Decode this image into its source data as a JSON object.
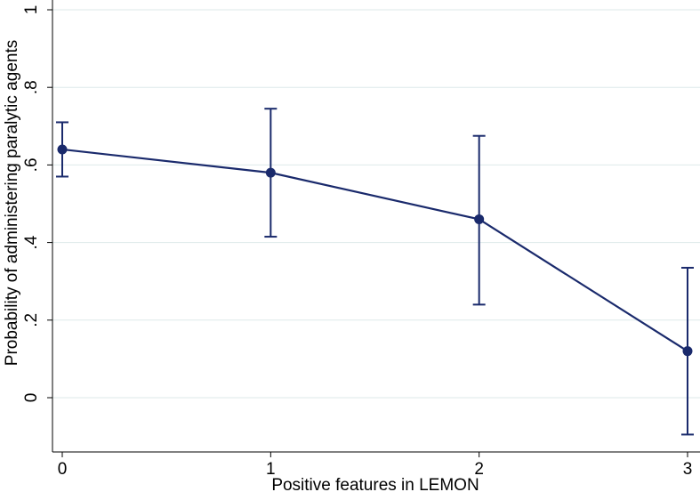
{
  "chart_data": {
    "type": "line",
    "title": "",
    "xlabel": "Positive features in LEMON",
    "ylabel": "Probability of administering paralytic agents",
    "xlim": [
      0,
      3
    ],
    "ylim": [
      -0.1,
      1
    ],
    "x_ticks": [
      0,
      1,
      2,
      3
    ],
    "x_tick_labels": [
      "0",
      "1",
      "2",
      "3"
    ],
    "y_ticks": [
      0,
      0.2,
      0.4,
      0.6,
      0.8,
      1
    ],
    "y_tick_labels": [
      "0",
      ".2",
      ".4",
      ".6",
      ".8",
      "1"
    ],
    "grid": true,
    "colors": {
      "series": "#1a2a6c",
      "grid": "#dde9ea",
      "axis": "#000000"
    },
    "series": [
      {
        "x": [
          0,
          1,
          2,
          3
        ],
        "y": [
          0.64,
          0.58,
          0.46,
          0.12
        ],
        "ci_low": [
          0.57,
          0.415,
          0.24,
          -0.095
        ],
        "ci_high": [
          0.71,
          0.745,
          0.675,
          0.335
        ]
      }
    ]
  }
}
